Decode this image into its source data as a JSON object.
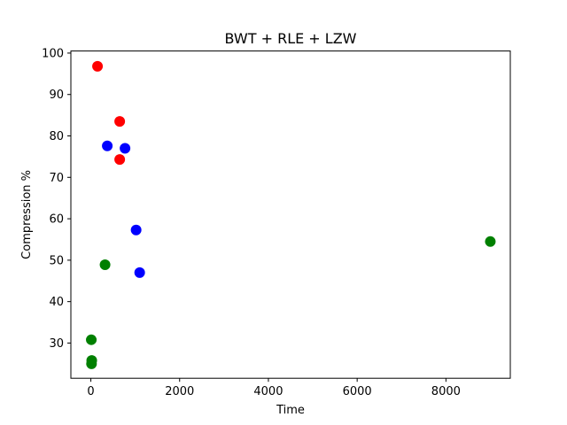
{
  "chart_data": {
    "type": "scatter",
    "title": "BWT + RLE + LZW",
    "xlabel": "Time",
    "ylabel": "Compression %",
    "xlim": [
      -450,
      9450
    ],
    "ylim": [
      21.5,
      100.5
    ],
    "xticks": [
      0,
      2000,
      4000,
      6000,
      8000
    ],
    "yticks": [
      30,
      40,
      50,
      60,
      70,
      80,
      90,
      100
    ],
    "grid": false,
    "series": [
      {
        "color": "#ff0000",
        "points": [
          {
            "x": 150,
            "y": 96.8
          },
          {
            "x": 650,
            "y": 83.5
          },
          {
            "x": 650,
            "y": 74.3
          }
        ]
      },
      {
        "color": "#0000ff",
        "points": [
          {
            "x": 370,
            "y": 77.6
          },
          {
            "x": 770,
            "y": 77.0
          },
          {
            "x": 1020,
            "y": 57.3
          },
          {
            "x": 1100,
            "y": 47.0
          }
        ]
      },
      {
        "color": "#008000",
        "points": [
          {
            "x": 10,
            "y": 30.8
          },
          {
            "x": 20,
            "y": 25.8
          },
          {
            "x": 15,
            "y": 25.0
          },
          {
            "x": 320,
            "y": 48.9
          },
          {
            "x": 9000,
            "y": 54.5
          }
        ]
      }
    ]
  }
}
